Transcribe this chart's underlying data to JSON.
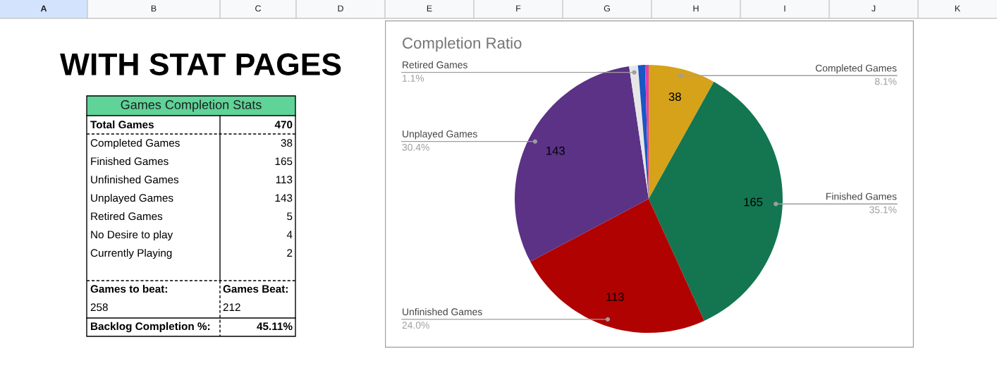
{
  "chart_data": [
    {
      "type": "other",
      "annotations": [
        "A",
        "B",
        "C",
        "D",
        "E",
        "F",
        "G",
        "H",
        "I",
        "J",
        "K"
      ]
    },
    {
      "type": "other",
      "title": "WITH STAT PAGES",
      "subtitle": "Games Completion Stats",
      "annotations": [
        "Total Games",
        "470",
        "Completed Games",
        "38",
        "Finished Games",
        "165",
        "Unfinished Games",
        "113",
        "Unplayed Games",
        "143",
        "Retired Games",
        "5",
        "No Desire to play",
        "4",
        "Currently Playing",
        "2",
        "Games to beat:",
        "Games Beat:",
        "258",
        "212",
        "Backlog Completion %:",
        "45.11%"
      ]
    },
    {
      "type": "pie",
      "title": "Completion Ratio",
      "categories": [
        "Completed Games",
        "Finished Games",
        "Unfinished Games",
        "Unplayed Games",
        "Retired Games",
        null,
        null
      ],
      "values": [
        38,
        165,
        113,
        143,
        5,
        4,
        2
      ],
      "colors": [
        "#d6a21a",
        "#137650",
        "#b10202",
        "#5b3286",
        "#e6e6e6",
        "#1a56c4",
        "#e040b0"
      ],
      "value_labels": [
        "38",
        "165",
        "113",
        "143",
        null,
        null,
        null
      ],
      "annotations": [
        {
          "text": "8.1%",
          "x": "Completed Games"
        },
        {
          "text": "35.1%",
          "x": "Finished Games"
        },
        {
          "text": "24.0%",
          "x": "Unfinished Games"
        },
        {
          "text": "30.4%",
          "x": "Unplayed Games"
        },
        {
          "text": "1.1%",
          "x": "Retired Games"
        }
      ]
    }
  ]
}
